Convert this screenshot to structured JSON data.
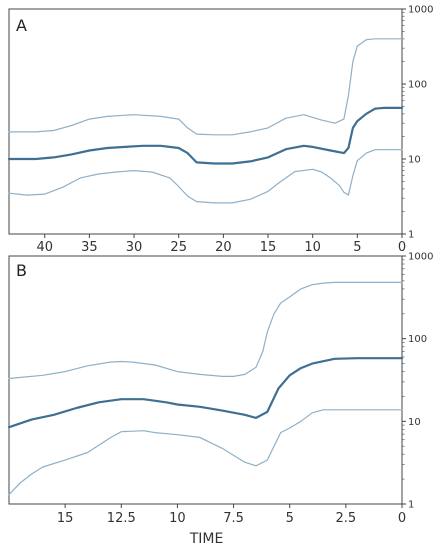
{
  "chart_data": [
    {
      "type": "line",
      "panel_label": "A",
      "xlabel": "",
      "xlim": [
        44,
        0
      ],
      "xticks": [
        40,
        35,
        30,
        25,
        20,
        15,
        10,
        5,
        0
      ],
      "xtick_labels": [
        "40",
        "35",
        "30",
        "25",
        "20",
        "15",
        "10",
        "5",
        "0"
      ],
      "yscale": "log",
      "ylim": [
        1,
        1000
      ],
      "yticks": [
        1,
        10,
        100,
        1000
      ],
      "ytick_labels": [
        "1",
        "10",
        "100",
        "1000"
      ],
      "grid": false,
      "colors": {
        "median": "#3f6f92",
        "interval": "#8fb0c8"
      },
      "series": [
        {
          "role": "upper",
          "x": [
            44,
            41,
            39,
            37,
            35,
            33,
            30,
            27,
            25,
            24,
            23,
            21,
            19,
            17,
            15,
            13,
            11,
            9,
            7.5,
            6.5,
            6,
            5.5,
            5,
            4,
            3,
            2,
            0
          ],
          "y": [
            23,
            23,
            24,
            28,
            34,
            37,
            39,
            37,
            34,
            26,
            21.5,
            21,
            21,
            23,
            26,
            35,
            39,
            33,
            30,
            34,
            70,
            200,
            320,
            390,
            400,
            400,
            400
          ]
        },
        {
          "role": "median",
          "x": [
            44,
            41,
            39,
            37,
            35,
            33,
            31,
            29,
            27,
            25,
            24,
            23,
            21,
            19,
            17,
            15,
            13,
            11,
            10,
            8,
            6.5,
            6,
            5.5,
            5,
            4,
            3,
            2,
            0
          ],
          "y": [
            10,
            10,
            10.5,
            11.5,
            13,
            14,
            14.5,
            15,
            15,
            14,
            12,
            9,
            8.7,
            8.7,
            9.3,
            10.5,
            13.5,
            15,
            14.5,
            13,
            12,
            14,
            26,
            32,
            40,
            47,
            48,
            48
          ]
        },
        {
          "role": "lower",
          "x": [
            44,
            42,
            40,
            38,
            36,
            34,
            32,
            30,
            28,
            26,
            25,
            24,
            23,
            21,
            19,
            17,
            15,
            14,
            12,
            10,
            9,
            8,
            7,
            6.5,
            6,
            5.5,
            5,
            4,
            3,
            2,
            0
          ],
          "y": [
            3.5,
            3.3,
            3.4,
            4.2,
            5.6,
            6.3,
            6.7,
            7,
            6.7,
            5.6,
            4.3,
            3.2,
            2.7,
            2.6,
            2.6,
            2.9,
            3.7,
            4.6,
            6.8,
            7.3,
            6.7,
            5.6,
            4.4,
            3.6,
            3.3,
            6,
            9.5,
            12,
            13.3,
            13.3,
            13.3
          ]
        }
      ]
    },
    {
      "type": "line",
      "panel_label": "B",
      "xlabel": "TIME",
      "xlim": [
        17.5,
        0
      ],
      "xticks": [
        15,
        12.5,
        10,
        7.5,
        5,
        2.5,
        0
      ],
      "xtick_labels": [
        "15",
        "12.5",
        "10",
        "7.5",
        "5",
        "2.5",
        "0"
      ],
      "yscale": "log",
      "ylim": [
        1,
        1000
      ],
      "yticks": [
        1,
        10,
        100,
        1000
      ],
      "ytick_labels": [
        "1",
        "10",
        "100",
        "1000"
      ],
      "grid": false,
      "colors": {
        "median": "#3f6f92",
        "interval": "#8fb0c8"
      },
      "series": [
        {
          "role": "upper",
          "x": [
            17.5,
            16,
            15,
            14,
            13,
            12.5,
            12,
            11,
            10,
            9,
            8,
            7.5,
            7,
            6.5,
            6.2,
            6,
            5.7,
            5.4,
            5,
            4.5,
            4,
            3.5,
            3,
            2.5,
            2,
            1,
            0
          ],
          "y": [
            33,
            36,
            40,
            47,
            52,
            53,
            52,
            48,
            40,
            37,
            35,
            35,
            37,
            45,
            70,
            120,
            200,
            270,
            320,
            400,
            450,
            470,
            480,
            480,
            480,
            480,
            480
          ]
        },
        {
          "role": "median",
          "x": [
            17.5,
            16.5,
            15.5,
            14.5,
            13.5,
            12.5,
            11.5,
            10.5,
            10,
            9,
            8,
            7,
            6.5,
            6,
            5.5,
            5,
            4.5,
            4,
            3,
            2,
            1,
            0
          ],
          "y": [
            8.5,
            10.5,
            12,
            14.5,
            17,
            18.5,
            18.5,
            17,
            16,
            15,
            13.5,
            12,
            11,
            13,
            25,
            36,
            44,
            50,
            57,
            58,
            58,
            58
          ]
        },
        {
          "role": "lower",
          "x": [
            17.5,
            17,
            16.5,
            16,
            15,
            14,
            13,
            12.5,
            11.5,
            11,
            10,
            9,
            8,
            7,
            6.5,
            6,
            5.7,
            5.4,
            5,
            4.5,
            4,
            3.5,
            3,
            2,
            1,
            0
          ],
          "y": [
            1.3,
            1.8,
            2.3,
            2.8,
            3.4,
            4.2,
            6.3,
            7.5,
            7.7,
            7.3,
            6.9,
            6.4,
            4.7,
            3.2,
            2.9,
            3.4,
            5,
            7.3,
            8.3,
            10,
            12.7,
            13.8,
            13.8,
            13.8,
            13.8,
            13.8
          ]
        }
      ]
    }
  ]
}
